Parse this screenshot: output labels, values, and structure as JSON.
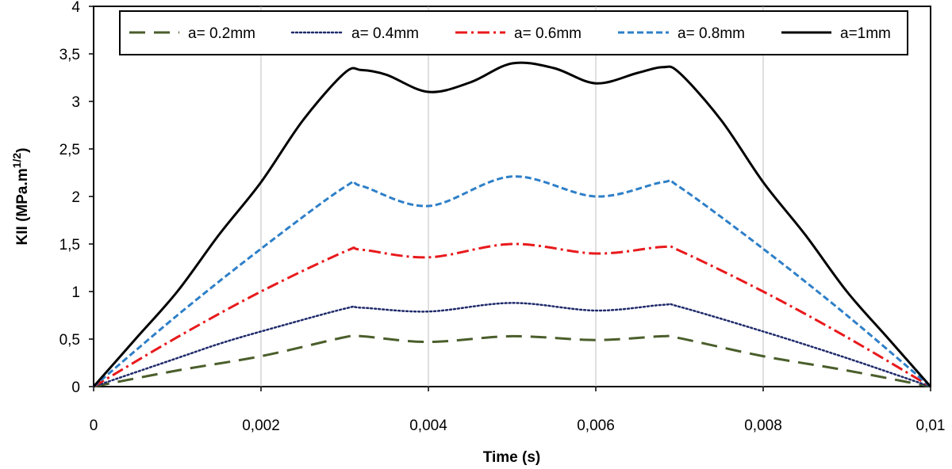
{
  "chart_data": {
    "type": "line",
    "xlabel": "Time (s)",
    "ylabel_main": "KII (MPa.m",
    "ylabel_sup": "1/2",
    "ylabel_close": ")",
    "xlim": [
      0,
      0.01
    ],
    "ylim": [
      0,
      4
    ],
    "xticks": [
      0,
      0.002,
      0.004,
      0.006,
      0.008,
      0.01
    ],
    "xtick_labels": [
      "0",
      "0,002",
      "0,004",
      "0,006",
      "0,008",
      "0,01"
    ],
    "yticks": [
      0,
      0.5,
      1,
      1.5,
      2,
      2.5,
      3,
      3.5,
      4
    ],
    "ytick_labels": [
      "0",
      "0,5",
      "1",
      "1,5",
      "2",
      "2,5",
      "3",
      "3,5",
      "4"
    ],
    "grid": "vertical",
    "legend_position": "top",
    "series": [
      {
        "name": "a= 0.2mm",
        "color": "#4a5e2a",
        "style": "long-dash",
        "x": [
          0,
          0.001,
          0.002,
          0.003,
          0.0032,
          0.004,
          0.005,
          0.006,
          0.0068,
          0.007,
          0.008,
          0.009,
          0.01
        ],
        "y": [
          0,
          0.17,
          0.32,
          0.52,
          0.53,
          0.47,
          0.53,
          0.49,
          0.53,
          0.51,
          0.32,
          0.17,
          0
        ]
      },
      {
        "name": "a= 0.4mm",
        "color": "#1f2a6b",
        "style": "dotted",
        "x": [
          0,
          0.001,
          0.0015,
          0.002,
          0.003,
          0.0032,
          0.004,
          0.005,
          0.006,
          0.0068,
          0.007,
          0.008,
          0.009,
          0.01
        ],
        "y": [
          0,
          0.3,
          0.45,
          0.58,
          0.82,
          0.83,
          0.79,
          0.88,
          0.8,
          0.86,
          0.84,
          0.58,
          0.3,
          0
        ]
      },
      {
        "name": "a= 0.6mm",
        "color": "#e8191c",
        "style": "dash-dot",
        "x": [
          0,
          0.001,
          0.002,
          0.003,
          0.0032,
          0.004,
          0.005,
          0.006,
          0.0068,
          0.007,
          0.008,
          0.009,
          0.01
        ],
        "y": [
          0,
          0.52,
          1.0,
          1.42,
          1.44,
          1.36,
          1.5,
          1.4,
          1.47,
          1.43,
          1.0,
          0.52,
          0
        ]
      },
      {
        "name": "a= 0.8mm",
        "color": "#2e7fc8",
        "style": "short-dash",
        "x": [
          0,
          0.001,
          0.002,
          0.003,
          0.0032,
          0.004,
          0.005,
          0.006,
          0.0068,
          0.007,
          0.008,
          0.009,
          0.01
        ],
        "y": [
          0,
          0.75,
          1.45,
          2.1,
          2.11,
          1.9,
          2.21,
          2.0,
          2.15,
          2.1,
          1.45,
          0.75,
          0
        ]
      },
      {
        "name": "a=1mm",
        "color": "#000000",
        "style": "solid",
        "x": [
          0,
          0.0005,
          0.001,
          0.0015,
          0.002,
          0.0025,
          0.003,
          0.0032,
          0.0035,
          0.004,
          0.0045,
          0.005,
          0.0055,
          0.006,
          0.0065,
          0.0068,
          0.007,
          0.0075,
          0.008,
          0.0085,
          0.009,
          0.0095,
          0.01
        ],
        "y": [
          0,
          0.5,
          1.0,
          1.6,
          2.15,
          2.8,
          3.3,
          3.33,
          3.28,
          3.1,
          3.2,
          3.4,
          3.35,
          3.19,
          3.3,
          3.36,
          3.3,
          2.8,
          2.15,
          1.6,
          1.0,
          0.5,
          0
        ]
      }
    ]
  }
}
